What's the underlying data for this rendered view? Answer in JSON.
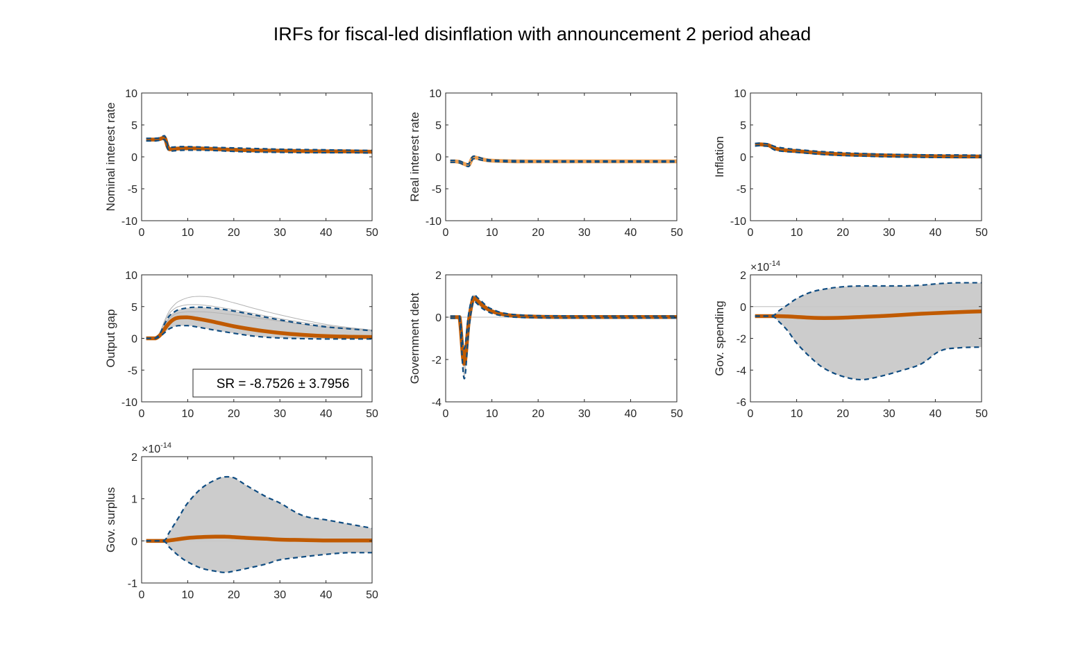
{
  "figure": {
    "title": "IRFs for fiscal-led disinflation with announcement 2 period ahead"
  },
  "colors": {
    "band": "#cccccc",
    "draws": "#b3b3b3",
    "zero_line": "#c8c8c8",
    "median": "#c05a00",
    "median_light": "#f0a050",
    "dashed": "#0f4c81",
    "axes": "#262626"
  },
  "chart_data": [
    {
      "type": "line",
      "ylabel": "Nominal interest rate",
      "xlim": [
        0,
        50
      ],
      "ylim": [
        -10,
        10
      ],
      "xticks": [
        0,
        10,
        20,
        30,
        40,
        50
      ],
      "yticks": [
        -10,
        -5,
        0,
        5,
        10
      ],
      "ytick_labels": [
        "-10",
        "-5",
        "0",
        "5",
        "10"
      ],
      "exponent": "",
      "median_style": "dark",
      "x": [
        1,
        2,
        3,
        4,
        5,
        6,
        8,
        10,
        15,
        20,
        25,
        30,
        35,
        40,
        45,
        50
      ],
      "median": [
        2.7,
        2.7,
        2.7,
        2.8,
        3.0,
        1.2,
        1.3,
        1.35,
        1.25,
        1.1,
        1.0,
        0.95,
        0.9,
        0.85,
        0.85,
        0.8
      ],
      "upper": [
        2.9,
        2.9,
        2.9,
        3.0,
        3.3,
        1.5,
        1.6,
        1.6,
        1.5,
        1.4,
        1.3,
        1.2,
        1.15,
        1.1,
        1.05,
        1.0
      ],
      "lower": [
        2.5,
        2.5,
        2.5,
        2.6,
        2.7,
        0.9,
        1.0,
        1.05,
        1.0,
        0.85,
        0.75,
        0.7,
        0.65,
        0.65,
        0.65,
        0.6
      ],
      "draws": [],
      "zero_line": false,
      "annotation": ""
    },
    {
      "type": "line",
      "ylabel": "Real interest rate",
      "xlim": [
        0,
        50
      ],
      "ylim": [
        -10,
        10
      ],
      "xticks": [
        0,
        10,
        20,
        30,
        40,
        50
      ],
      "yticks": [
        -10,
        -5,
        0,
        5,
        10
      ],
      "ytick_labels": [
        "-10",
        "-5",
        "0",
        "5",
        "10"
      ],
      "exponent": "",
      "median_style": "light",
      "x": [
        1,
        2,
        3,
        4,
        5,
        6,
        8,
        10,
        15,
        20,
        25,
        30,
        35,
        40,
        45,
        50
      ],
      "median": [
        -0.7,
        -0.7,
        -0.8,
        -1.1,
        -1.3,
        -0.1,
        -0.4,
        -0.6,
        -0.7,
        -0.7,
        -0.7,
        -0.7,
        -0.7,
        -0.7,
        -0.7,
        -0.7
      ],
      "upper": [
        -0.55,
        -0.55,
        -0.65,
        -0.95,
        -1.1,
        0.1,
        -0.25,
        -0.5,
        -0.6,
        -0.65,
        -0.65,
        -0.65,
        -0.65,
        -0.65,
        -0.65,
        -0.65
      ],
      "lower": [
        -0.85,
        -0.85,
        -0.95,
        -1.25,
        -1.5,
        -0.3,
        -0.55,
        -0.7,
        -0.8,
        -0.8,
        -0.8,
        -0.8,
        -0.8,
        -0.8,
        -0.8,
        -0.8
      ],
      "draws": [],
      "zero_line": false,
      "annotation": ""
    },
    {
      "type": "line",
      "ylabel": "Inflation",
      "xlim": [
        0,
        50
      ],
      "ylim": [
        -10,
        10
      ],
      "xticks": [
        0,
        10,
        20,
        30,
        40,
        50
      ],
      "yticks": [
        -10,
        -5,
        0,
        5,
        10
      ],
      "ytick_labels": [
        "-10",
        "-5",
        "0",
        "5",
        "10"
      ],
      "exponent": "",
      "median_style": "dark",
      "x": [
        1,
        2,
        3,
        4,
        5,
        6,
        8,
        10,
        15,
        20,
        25,
        30,
        35,
        40,
        45,
        50
      ],
      "median": [
        1.9,
        1.95,
        1.9,
        1.8,
        1.4,
        1.2,
        1.0,
        0.9,
        0.6,
        0.4,
        0.3,
        0.2,
        0.15,
        0.1,
        0.05,
        0.05
      ],
      "upper": [
        2.1,
        2.15,
        2.1,
        2.0,
        1.7,
        1.5,
        1.3,
        1.15,
        0.85,
        0.65,
        0.5,
        0.4,
        0.35,
        0.3,
        0.3,
        0.25
      ],
      "lower": [
        1.7,
        1.75,
        1.7,
        1.6,
        1.15,
        0.95,
        0.8,
        0.7,
        0.4,
        0.2,
        0.1,
        0.0,
        -0.05,
        -0.1,
        -0.1,
        -0.1
      ],
      "draws": [],
      "zero_line": false,
      "annotation": ""
    },
    {
      "type": "line",
      "ylabel": "Output gap",
      "xlim": [
        0,
        50
      ],
      "ylim": [
        -10,
        10
      ],
      "xticks": [
        0,
        10,
        20,
        30,
        40,
        50
      ],
      "yticks": [
        -10,
        -5,
        0,
        5,
        10
      ],
      "ytick_labels": [
        "-10",
        "-5",
        "0",
        "5",
        "10"
      ],
      "exponent": "",
      "median_style": "dark",
      "x": [
        1,
        2,
        3,
        4,
        5,
        6,
        7,
        8,
        10,
        12,
        15,
        20,
        25,
        30,
        35,
        40,
        45,
        50
      ],
      "median": [
        0,
        0,
        0,
        0.5,
        1.5,
        2.4,
        3.0,
        3.25,
        3.3,
        3.1,
        2.7,
        1.9,
        1.3,
        0.85,
        0.55,
        0.35,
        0.25,
        0.2
      ],
      "upper": [
        0,
        0,
        0,
        0.8,
        2.3,
        3.5,
        4.1,
        4.5,
        4.8,
        4.9,
        4.8,
        4.3,
        3.6,
        2.9,
        2.3,
        1.8,
        1.5,
        1.2
      ],
      "lower": [
        0,
        0,
        0,
        0.3,
        0.9,
        1.5,
        1.8,
        2.0,
        2.0,
        1.8,
        1.4,
        0.8,
        0.3,
        0.05,
        -0.05,
        -0.1,
        -0.1,
        -0.1
      ],
      "draws": [
        [
          0,
          0,
          0,
          1.0,
          2.8,
          4.3,
          5.2,
          5.8,
          6.4,
          6.6,
          6.5,
          5.6,
          4.6,
          3.7,
          2.9,
          2.2,
          1.7,
          1.3
        ],
        [
          0,
          0,
          0,
          0.9,
          2.5,
          3.9,
          4.6,
          5.0,
          5.3,
          5.3,
          5.1,
          4.5,
          3.8,
          3.1,
          2.5,
          2.0,
          1.6,
          1.3
        ],
        [
          0,
          0,
          0,
          0.7,
          2.0,
          3.1,
          3.7,
          4.0,
          4.2,
          4.2,
          4.1,
          3.7,
          3.2,
          2.7,
          2.2,
          1.8,
          1.5,
          1.2
        ]
      ],
      "zero_line": false,
      "annotation": "SR = -8.7526 ± 3.7956"
    },
    {
      "type": "line",
      "ylabel": "Government debt",
      "xlim": [
        0,
        50
      ],
      "ylim": [
        -4,
        2
      ],
      "xticks": [
        0,
        10,
        20,
        30,
        40,
        50
      ],
      "yticks": [
        -4,
        -2,
        0,
        2
      ],
      "ytick_labels": [
        "-4",
        "-2",
        "0",
        "2"
      ],
      "exponent": "",
      "median_style": "dark",
      "x": [
        1,
        2,
        3,
        4,
        5,
        6,
        7,
        8,
        9,
        10,
        12,
        15,
        20,
        25,
        30,
        35,
        40,
        45,
        50
      ],
      "median": [
        0,
        0,
        0,
        -2.2,
        -0.2,
        0.9,
        0.75,
        0.55,
        0.4,
        0.28,
        0.15,
        0.06,
        0.02,
        0.01,
        0.01,
        0.01,
        0.01,
        0.01,
        0.01
      ],
      "upper": [
        0.05,
        0.05,
        0.05,
        -1.5,
        0.2,
        1.05,
        0.9,
        0.7,
        0.5,
        0.38,
        0.22,
        0.12,
        0.07,
        0.06,
        0.05,
        0.05,
        0.05,
        0.05,
        0.05
      ],
      "lower": [
        -0.05,
        -0.05,
        -0.05,
        -2.9,
        -0.6,
        0.75,
        0.6,
        0.4,
        0.28,
        0.18,
        0.08,
        0.0,
        -0.03,
        -0.04,
        -0.04,
        -0.04,
        -0.04,
        -0.04,
        -0.04
      ],
      "draws": [],
      "zero_line": true,
      "annotation": ""
    },
    {
      "type": "line",
      "ylabel": "Gov. spending",
      "xlim": [
        0,
        50
      ],
      "ylim": [
        -6,
        2
      ],
      "xticks": [
        0,
        10,
        20,
        30,
        40,
        50
      ],
      "yticks": [
        -6,
        -4,
        -2,
        0,
        2
      ],
      "ytick_labels": [
        "-6",
        "-4",
        "-2",
        "0",
        "2"
      ],
      "exponent": "-14",
      "median_style": "dark",
      "x": [
        1,
        3,
        5,
        6,
        8,
        10,
        13,
        16,
        20,
        24,
        28,
        33,
        37,
        41,
        45,
        50
      ],
      "median": [
        -0.6,
        -0.6,
        -0.6,
        -0.6,
        -0.62,
        -0.65,
        -0.7,
        -0.72,
        -0.7,
        -0.65,
        -0.6,
        -0.52,
        -0.45,
        -0.4,
        -0.35,
        -0.3
      ],
      "upper": [
        -0.6,
        -0.6,
        -0.55,
        -0.3,
        0.1,
        0.5,
        0.9,
        1.1,
        1.25,
        1.3,
        1.3,
        1.3,
        1.35,
        1.45,
        1.5,
        1.5
      ],
      "lower": [
        -0.6,
        -0.6,
        -0.65,
        -0.9,
        -1.5,
        -2.3,
        -3.2,
        -3.9,
        -4.4,
        -4.6,
        -4.4,
        -4.0,
        -3.6,
        -2.8,
        -2.6,
        -2.55
      ],
      "draws": [],
      "zero_line": true,
      "annotation": ""
    },
    {
      "type": "line",
      "ylabel": "Gov. surplus",
      "xlim": [
        0,
        50
      ],
      "ylim": [
        -1,
        2
      ],
      "xticks": [
        0,
        10,
        20,
        30,
        40,
        50
      ],
      "yticks": [
        -1,
        0,
        1,
        2
      ],
      "ytick_labels": [
        "-1",
        "0",
        "1",
        "2"
      ],
      "exponent": "-14",
      "median_style": "dark",
      "x": [
        1,
        3,
        5,
        6,
        8,
        10,
        13,
        16,
        18,
        20,
        23,
        27,
        30,
        35,
        40,
        45,
        50
      ],
      "median": [
        0,
        0,
        0,
        0.01,
        0.04,
        0.07,
        0.09,
        0.1,
        0.1,
        0.09,
        0.07,
        0.05,
        0.03,
        0.02,
        0.01,
        0.01,
        0.01
      ],
      "upper": [
        0,
        0,
        0.02,
        0.2,
        0.55,
        0.9,
        1.25,
        1.45,
        1.52,
        1.5,
        1.3,
        1.05,
        0.9,
        0.6,
        0.5,
        0.4,
        0.3
      ],
      "lower": [
        0,
        0,
        -0.02,
        -0.15,
        -0.35,
        -0.5,
        -0.65,
        -0.72,
        -0.75,
        -0.72,
        -0.65,
        -0.55,
        -0.45,
        -0.38,
        -0.32,
        -0.28,
        -0.28
      ],
      "draws": [],
      "zero_line": true,
      "annotation": ""
    }
  ]
}
